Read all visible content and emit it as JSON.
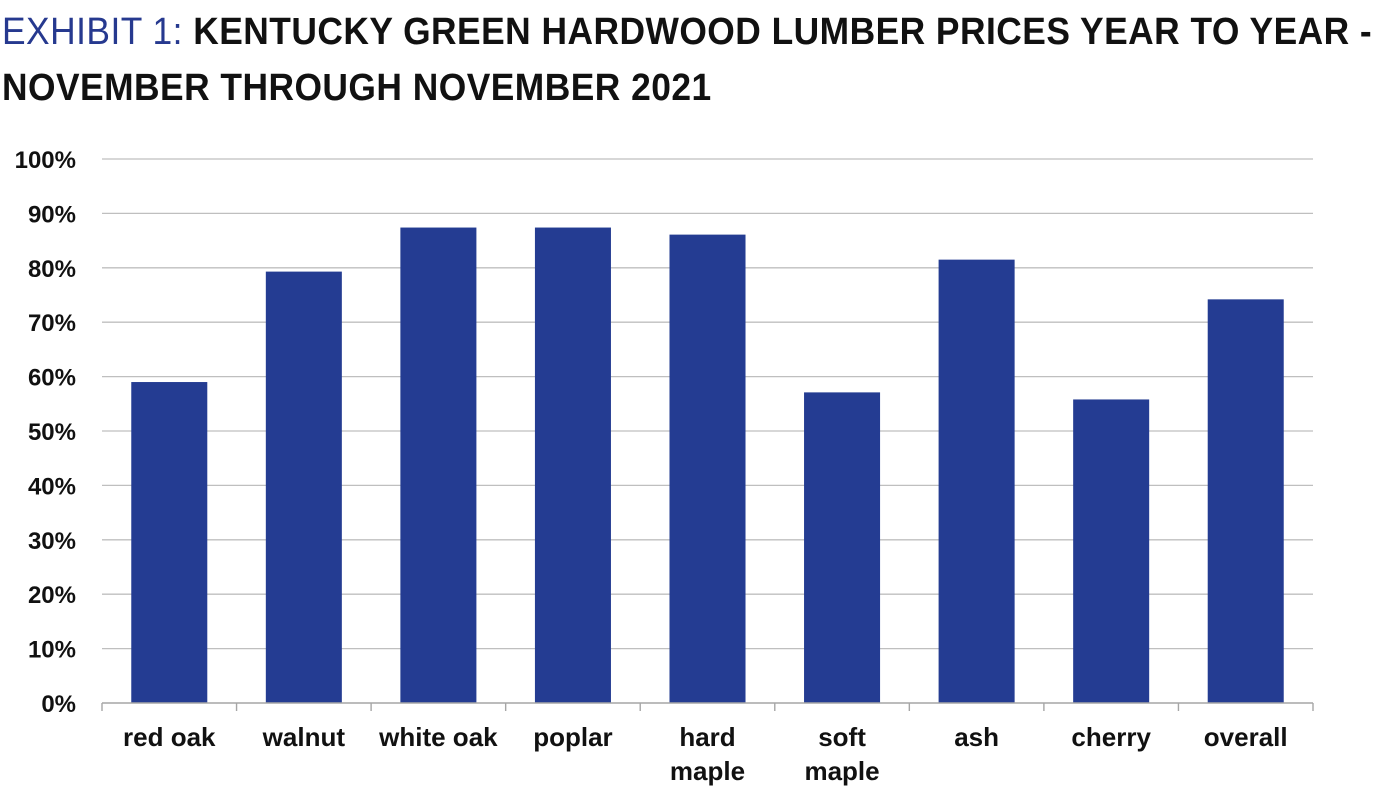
{
  "title": {
    "exhibit_label": "EXHIBIT 1:",
    "line1_text": "KENTUCKY GREEN HARDWOOD LUMBER PRICES YEAR TO YEAR -",
    "line2_text": "NOVEMBER THROUGH NOVEMBER 2021"
  },
  "colors": {
    "bar": "#243c92",
    "exhibit_label": "#26398f",
    "grid": "#bfbfbf",
    "axis": "#a6a6a6",
    "text": "#111111"
  },
  "chart_data": {
    "type": "bar",
    "title": "EXHIBIT 1: KENTUCKY GREEN HARDWOOD LUMBER PRICES YEAR TO YEAR - NOVEMBER THROUGH NOVEMBER 2021",
    "xlabel": "",
    "ylabel": "",
    "categories": [
      [
        "red oak"
      ],
      [
        "walnut"
      ],
      [
        "white oak"
      ],
      [
        "poplar"
      ],
      [
        "hard",
        "maple"
      ],
      [
        "soft",
        "maple"
      ],
      [
        "ash"
      ],
      [
        "cherry"
      ],
      [
        "overall"
      ]
    ],
    "values": [
      59,
      79.3,
      87.4,
      87.4,
      86.1,
      57.1,
      81.5,
      55.8,
      74.2
    ],
    "ylim": [
      0,
      100
    ],
    "yticks": [
      0,
      10,
      20,
      30,
      40,
      50,
      60,
      70,
      80,
      90,
      100
    ],
    "ytick_labels": [
      "0%",
      "10%",
      "20%",
      "30%",
      "40%",
      "50%",
      "60%",
      "70%",
      "80%",
      "90%",
      "100%"
    ],
    "grid": true,
    "legend": "none"
  }
}
